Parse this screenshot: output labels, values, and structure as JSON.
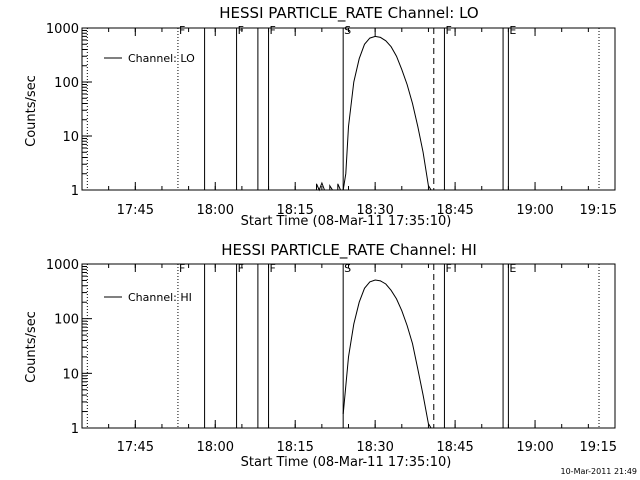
{
  "footer_timestamp": "10-Mar-2011 21:49",
  "chart_data": [
    {
      "type": "line",
      "title": "HESSI PARTICLE_RATE Channel: LO",
      "xlabel": "Start Time (08-Mar-11 17:35:10)",
      "ylabel": "Counts/sec",
      "y_scale": "log",
      "ylim": [
        1,
        1000
      ],
      "y_ticks": [
        {
          "value": 1,
          "label": "1"
        },
        {
          "value": 10,
          "label": "10"
        },
        {
          "value": 100,
          "label": "100"
        },
        {
          "value": 1000,
          "label": "1000"
        }
      ],
      "xlim": [
        "17:35",
        "19:15"
      ],
      "x_ticks": [
        "17:45",
        "18:00",
        "18:15",
        "18:30",
        "18:45",
        "19:00",
        "19:15"
      ],
      "legend": {
        "entry": "Channel: LO",
        "placement": "top-left"
      },
      "flags": [
        {
          "time": "17:36",
          "style": "dotted",
          "label": ""
        },
        {
          "time": "17:53",
          "style": "dotted",
          "label": "F"
        },
        {
          "time": "17:58",
          "style": "solid",
          "label": ""
        },
        {
          "time": "18:04",
          "style": "solid",
          "label": "F"
        },
        {
          "time": "18:08",
          "style": "solid",
          "label": ""
        },
        {
          "time": "18:10",
          "style": "solid",
          "label": "F"
        },
        {
          "time": "18:24",
          "style": "solid",
          "label": "S"
        },
        {
          "time": "18:41",
          "style": "dashed",
          "label": ""
        },
        {
          "time": "18:43",
          "style": "solid",
          "label": "F"
        },
        {
          "time": "18:54",
          "style": "solid",
          "label": ""
        },
        {
          "time": "18:55",
          "style": "solid",
          "label": "E"
        },
        {
          "time": "19:12",
          "style": "dotted",
          "label": ""
        }
      ],
      "series": [
        {
          "name": "Channel: LO",
          "segments": [
            [
              {
                "x": "18:19",
                "y": 1.0
              },
              {
                "x": "18:19",
                "y": 1.3
              },
              {
                "x": "18:19.5",
                "y": 1.0
              },
              {
                "x": "18:20",
                "y": 1.35
              },
              {
                "x": "18:20.5",
                "y": 1.0
              }
            ],
            [
              {
                "x": "18:21.5",
                "y": 1.0
              },
              {
                "x": "18:21.5",
                "y": 1.2
              },
              {
                "x": "18:22",
                "y": 1.0
              }
            ],
            [
              {
                "x": "18:23",
                "y": 1.0
              },
              {
                "x": "18:23",
                "y": 1.3
              },
              {
                "x": "18:23.5",
                "y": 1.0
              }
            ],
            [
              {
                "x": "18:24",
                "y": 1.0
              },
              {
                "x": "18:24.5",
                "y": 2.0
              },
              {
                "x": "18:25",
                "y": 15
              },
              {
                "x": "18:26",
                "y": 100
              },
              {
                "x": "18:27",
                "y": 270
              },
              {
                "x": "18:28",
                "y": 500
              },
              {
                "x": "18:29",
                "y": 650
              },
              {
                "x": "18:30",
                "y": 700
              },
              {
                "x": "18:31",
                "y": 670
              },
              {
                "x": "18:32",
                "y": 580
              },
              {
                "x": "18:33",
                "y": 450
              },
              {
                "x": "18:34",
                "y": 300
              },
              {
                "x": "18:35",
                "y": 170
              },
              {
                "x": "18:36",
                "y": 90
              },
              {
                "x": "18:37",
                "y": 40
              },
              {
                "x": "18:38",
                "y": 15
              },
              {
                "x": "18:39",
                "y": 5
              },
              {
                "x": "18:40",
                "y": 1.2
              },
              {
                "x": "18:40.5",
                "y": 1.0
              }
            ]
          ]
        }
      ]
    },
    {
      "type": "line",
      "title": "HESSI PARTICLE_RATE Channel: HI",
      "xlabel": "Start Time (08-Mar-11 17:35:10)",
      "ylabel": "Counts/sec",
      "y_scale": "log",
      "ylim": [
        1,
        1000
      ],
      "y_ticks": [
        {
          "value": 1,
          "label": "1"
        },
        {
          "value": 10,
          "label": "10"
        },
        {
          "value": 100,
          "label": "100"
        },
        {
          "value": 1000,
          "label": "1000"
        }
      ],
      "xlim": [
        "17:35",
        "19:15"
      ],
      "x_ticks": [
        "17:45",
        "18:00",
        "18:15",
        "18:30",
        "18:45",
        "19:00",
        "19:15"
      ],
      "legend": {
        "entry": "Channel: HI",
        "placement": "top-left"
      },
      "flags": [
        {
          "time": "17:36",
          "style": "dotted",
          "label": ""
        },
        {
          "time": "17:53",
          "style": "dotted",
          "label": "F"
        },
        {
          "time": "17:58",
          "style": "solid",
          "label": ""
        },
        {
          "time": "18:04",
          "style": "solid",
          "label": "F"
        },
        {
          "time": "18:08",
          "style": "solid",
          "label": ""
        },
        {
          "time": "18:10",
          "style": "solid",
          "label": "F"
        },
        {
          "time": "18:24",
          "style": "solid",
          "label": "S"
        },
        {
          "time": "18:41",
          "style": "dashed",
          "label": ""
        },
        {
          "time": "18:43",
          "style": "solid",
          "label": "F"
        },
        {
          "time": "18:54",
          "style": "solid",
          "label": ""
        },
        {
          "time": "18:55",
          "style": "solid",
          "label": "E"
        },
        {
          "time": "19:12",
          "style": "dotted",
          "label": ""
        }
      ],
      "series": [
        {
          "name": "Channel: HI",
          "segments": [
            [
              {
                "x": "18:24",
                "y": 1.8
              },
              {
                "x": "18:25",
                "y": 20
              },
              {
                "x": "18:26",
                "y": 80
              },
              {
                "x": "18:27",
                "y": 200
              },
              {
                "x": "18:28",
                "y": 360
              },
              {
                "x": "18:29",
                "y": 470
              },
              {
                "x": "18:30",
                "y": 510
              },
              {
                "x": "18:31",
                "y": 490
              },
              {
                "x": "18:32",
                "y": 430
              },
              {
                "x": "18:33",
                "y": 330
              },
              {
                "x": "18:34",
                "y": 230
              },
              {
                "x": "18:35",
                "y": 140
              },
              {
                "x": "18:36",
                "y": 75
              },
              {
                "x": "18:37",
                "y": 35
              },
              {
                "x": "18:38",
                "y": 12
              },
              {
                "x": "18:39",
                "y": 4
              },
              {
                "x": "18:40",
                "y": 1.2
              },
              {
                "x": "18:40.5",
                "y": 1.0
              }
            ]
          ]
        }
      ]
    }
  ]
}
